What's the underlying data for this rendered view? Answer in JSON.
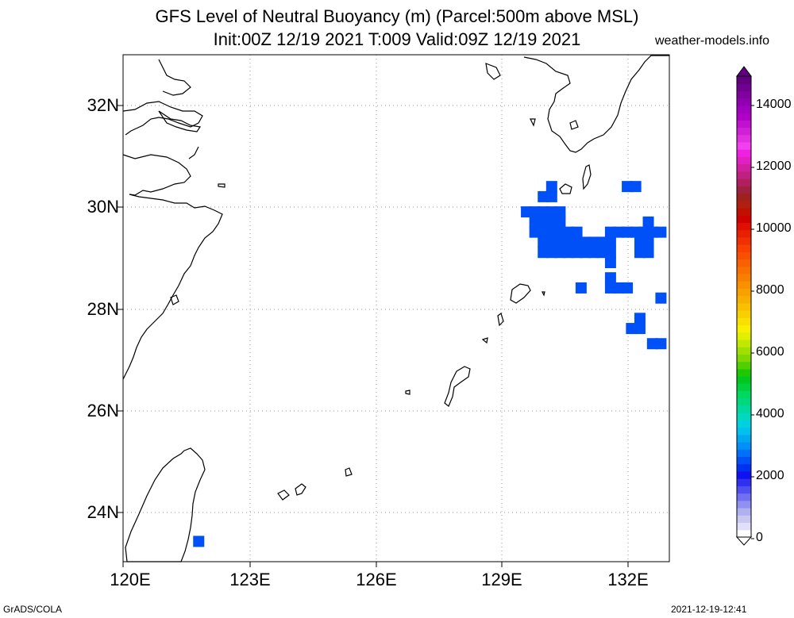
{
  "title": {
    "line1": "GFS Level of Neutral Buoyancy (m) (Parcel:500m above MSL)",
    "line2": "Init:00Z 12/19 2021 T:009 Valid:09Z 12/19 2021"
  },
  "site_label": "weather-models.info",
  "footer": {
    "left": "GrADS/COLA",
    "right": "2021-12-19-12:41"
  },
  "lat_labels": [
    "32N",
    "30N",
    "28N",
    "26N",
    "24N"
  ],
  "lon_labels": [
    "120E",
    "123E",
    "126E",
    "129E",
    "132E"
  ],
  "colorbar": {
    "labels": [
      "14000",
      "12000",
      "10000",
      "8000",
      "6000",
      "4000",
      "2000",
      "0"
    ],
    "colors": [
      "#ffffff",
      "#e0e0f8",
      "#c8c8f0",
      "#b0b0f0",
      "#9090f0",
      "#7070f0",
      "#5050f0",
      "#3030f0",
      "#1010f0",
      "#0030f0",
      "#0050f8",
      "#0070f8",
      "#0090f8",
      "#00a8f0",
      "#00c0f0",
      "#00d0e0",
      "#00d8c0",
      "#00d8a0",
      "#00d880",
      "#00d860",
      "#00d040",
      "#00c820",
      "#20c800",
      "#50d000",
      "#80d800",
      "#a0e000",
      "#c0e800",
      "#e0f000",
      "#f8f000",
      "#f8e000",
      "#f8d000",
      "#f8c000",
      "#f8b000",
      "#f8a000",
      "#f89000",
      "#f88000",
      "#f87000",
      "#f86000",
      "#f85000",
      "#f84000",
      "#f03000",
      "#e82000",
      "#e01000",
      "#d00000",
      "#c01000",
      "#b02010",
      "#a02020",
      "#a02040",
      "#b02060",
      "#c02080",
      "#d020a0",
      "#e020c0",
      "#f020e0",
      "#f040f0",
      "#e030e0",
      "#d020d8",
      "#c010d0",
      "#b000c8",
      "#a000c0",
      "#9000b0",
      "#8000a0",
      "#700090",
      "#600080"
    ]
  },
  "map_data": {
    "lon_range": [
      120,
      133
    ],
    "lat_range": [
      23,
      33
    ],
    "field_color": "#0050f8",
    "field_cells": [
      [
        130.2,
        30.4
      ],
      [
        132.0,
        30.4
      ],
      [
        132.2,
        30.4
      ],
      [
        130.0,
        30.2
      ],
      [
        130.2,
        30.2
      ],
      [
        129.6,
        29.9
      ],
      [
        129.8,
        29.9
      ],
      [
        130.0,
        29.9
      ],
      [
        130.2,
        29.9
      ],
      [
        130.4,
        29.9
      ],
      [
        129.8,
        29.7
      ],
      [
        130.0,
        29.7
      ],
      [
        130.2,
        29.7
      ],
      [
        130.4,
        29.7
      ],
      [
        132.5,
        29.7
      ],
      [
        129.8,
        29.5
      ],
      [
        130.0,
        29.5
      ],
      [
        130.2,
        29.5
      ],
      [
        130.4,
        29.5
      ],
      [
        130.6,
        29.5
      ],
      [
        130.8,
        29.5
      ],
      [
        131.6,
        29.5
      ],
      [
        131.8,
        29.5
      ],
      [
        132.0,
        29.5
      ],
      [
        132.2,
        29.5
      ],
      [
        132.4,
        29.5
      ],
      [
        132.6,
        29.5
      ],
      [
        132.8,
        29.5
      ],
      [
        130.0,
        29.3
      ],
      [
        130.2,
        29.3
      ],
      [
        130.4,
        29.3
      ],
      [
        130.6,
        29.3
      ],
      [
        130.8,
        29.3
      ],
      [
        131.0,
        29.3
      ],
      [
        131.2,
        29.3
      ],
      [
        131.4,
        29.3
      ],
      [
        131.6,
        29.3
      ],
      [
        132.3,
        29.3
      ],
      [
        132.5,
        29.3
      ],
      [
        130.0,
        29.1
      ],
      [
        130.2,
        29.1
      ],
      [
        130.4,
        29.1
      ],
      [
        130.6,
        29.1
      ],
      [
        130.8,
        29.1
      ],
      [
        131.0,
        29.1
      ],
      [
        131.2,
        29.1
      ],
      [
        131.4,
        29.1
      ],
      [
        131.6,
        29.1
      ],
      [
        132.3,
        29.1
      ],
      [
        132.5,
        29.1
      ],
      [
        131.6,
        28.9
      ],
      [
        131.6,
        28.6
      ],
      [
        130.9,
        28.4
      ],
      [
        131.6,
        28.4
      ],
      [
        131.8,
        28.4
      ],
      [
        132.0,
        28.4
      ],
      [
        132.8,
        28.2
      ],
      [
        132.3,
        27.8
      ],
      [
        132.1,
        27.6
      ],
      [
        132.3,
        27.6
      ],
      [
        132.6,
        27.3
      ],
      [
        132.8,
        27.3
      ],
      [
        121.8,
        23.4
      ]
    ]
  }
}
